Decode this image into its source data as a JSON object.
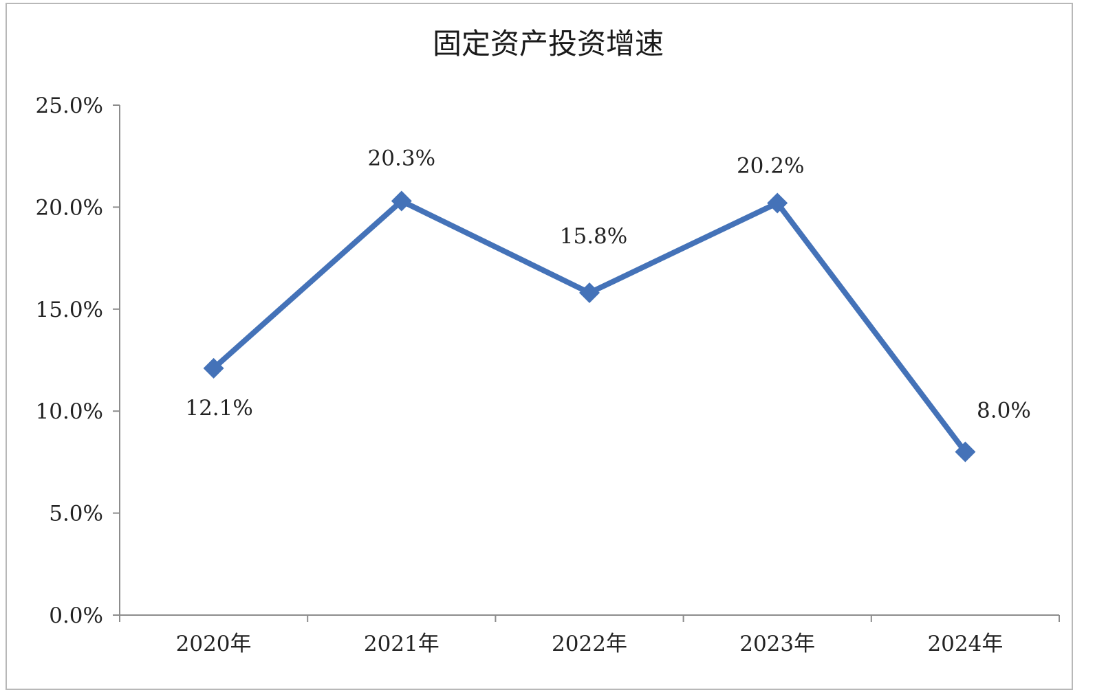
{
  "chart_data": {
    "type": "line",
    "title": "固定资产投资增速",
    "categories": [
      "2020年",
      "2021年",
      "2022年",
      "2023年",
      "2024年"
    ],
    "series": [
      {
        "values": [
          12.1,
          20.3,
          15.8,
          20.2,
          8.0
        ],
        "data_labels": [
          "12.1%",
          "20.3%",
          "15.8%",
          "20.2%",
          "8.0%"
        ]
      }
    ],
    "ylim": [
      0,
      25
    ],
    "y_ticks": [
      "0.0%",
      "5.0%",
      "10.0%",
      "15.0%",
      "20.0%",
      "25.0%"
    ],
    "xlabel": "",
    "ylabel": "",
    "grid": false,
    "legend": "none",
    "marker": "diamond"
  },
  "colors": {
    "series": "#4472b8",
    "axis": "#8c8c8c",
    "frame": "#b8b8b8"
  }
}
